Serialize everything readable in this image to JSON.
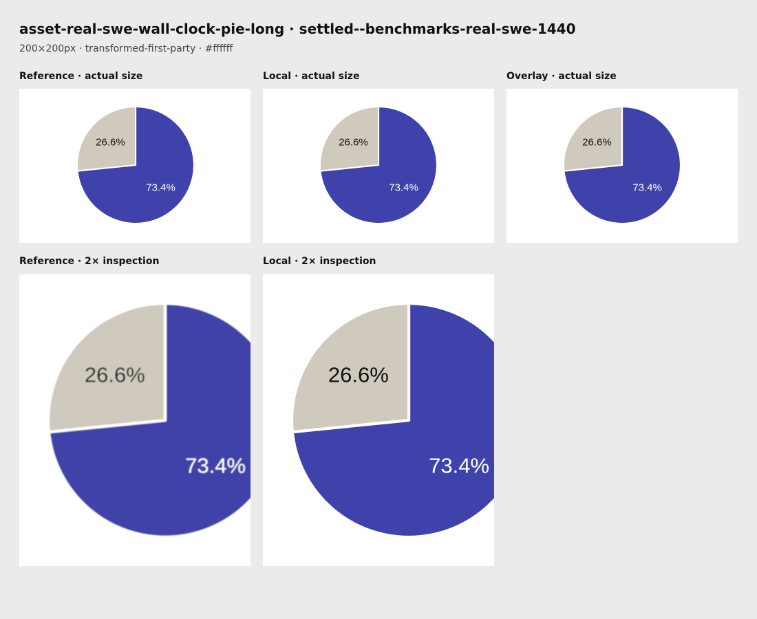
{
  "header": {
    "title": "asset-real-swe-wall-clock-pie-long · settled--benchmarks-real-swe-1440",
    "subtitle": "200×200px · transformed-first-party · #ffffff"
  },
  "panels": [
    {
      "label": "Reference · actual size"
    },
    {
      "label": "Local · actual size"
    },
    {
      "label": "Overlay · actual size"
    },
    {
      "label": "Reference · 2× inspection"
    },
    {
      "label": "Local · 2× inspection"
    }
  ],
  "pie": {
    "slices": [
      {
        "value": 73.4,
        "label": "73.4%",
        "color": "#3f42aa",
        "text_color": "#ffffff"
      },
      {
        "value": 26.6,
        "label": "26.6%",
        "color": "#cfc9be",
        "text_color": "#111111"
      }
    ],
    "background": "#ffffff"
  },
  "chart_data": {
    "type": "pie",
    "categories": [
      "73.4%",
      "26.6%"
    ],
    "values": [
      73.4,
      26.6
    ],
    "title": ""
  }
}
